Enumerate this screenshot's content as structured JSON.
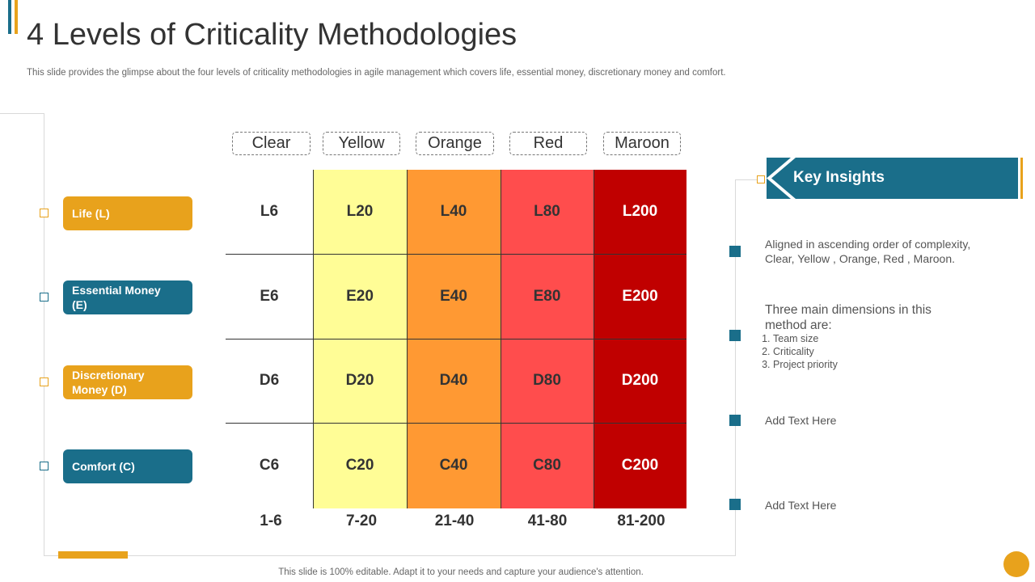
{
  "slide": {
    "title": "4 Levels of Criticality Methodologies",
    "subtitle": "This slide provides the glimpse about the four levels of criticality methodologies in agile management which covers life, essential money, discretionary money and comfort.",
    "footer": "This slide is 100% editable. Adapt it to your needs and capture your audience's attention."
  },
  "colors": {
    "accent_orange": "#e8a21c",
    "accent_teal": "#1a6e8a",
    "yellow": "#fffd96",
    "orange": "#ff9933",
    "red": "#ff4d4d",
    "maroon": "#c00000"
  },
  "levels": [
    "Clear",
    "Yellow",
    "Orange",
    "Red",
    "Maroon"
  ],
  "dimensions": [
    {
      "label": "Life (L)",
      "color": "orange"
    },
    {
      "label": "Essential Money (E)",
      "color": "teal"
    },
    {
      "label": "Discretionary Money (D)",
      "color": "orange"
    },
    {
      "label": "Comfort (C)",
      "color": "teal"
    }
  ],
  "matrix": [
    [
      "L6",
      "L20",
      "L40",
      "L80",
      "L200"
    ],
    [
      "E6",
      "E20",
      "E40",
      "E80",
      "E200"
    ],
    [
      "D6",
      "D20",
      "D40",
      "D80",
      "D200"
    ],
    [
      "C6",
      "C20",
      "C40",
      "C80",
      "C200"
    ]
  ],
  "ranges": [
    "1-6",
    "7-20",
    "21-40",
    "41-80",
    "81-200"
  ],
  "insights": {
    "header": "Key Insights",
    "items": [
      "Aligned in ascending order of complexity, Clear, Yellow , Orange, Red , Maroon.",
      "Three main dimensions in this method are:",
      "Add Text Here",
      "Add Text Here"
    ],
    "sublist": [
      "Team size",
      "Criticality",
      "Project priority"
    ]
  }
}
